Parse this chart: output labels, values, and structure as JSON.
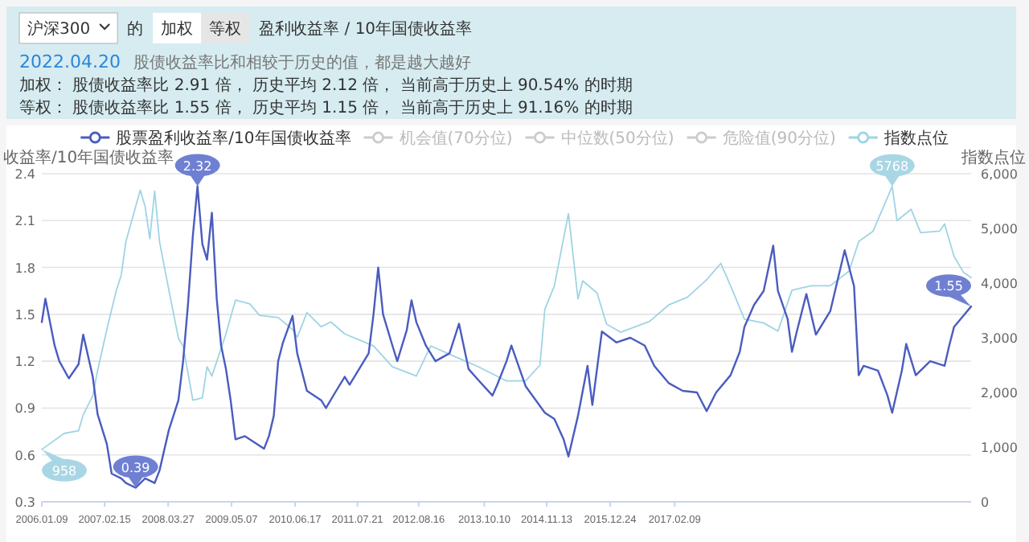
{
  "chart_data": {
    "type": "line",
    "title": "盈利收益率 / 10年国债收益率",
    "subtitle": "2022.04.20",
    "ylabel": "收益率/10年国债收益率",
    "y2label": "指数点位",
    "legend": "top",
    "grid": "y",
    "line_style": "solid",
    "xlim": [
      "2006-01-09",
      "2022-04-20"
    ],
    "xticks": [
      {
        "value": "2006-01-09",
        "label": "2006.01.09"
      },
      {
        "value": "2007-02-15",
        "label": "2007.02.15"
      },
      {
        "value": "2008-03-27",
        "label": "2008.03.27"
      },
      {
        "value": "2009-05-07",
        "label": "2009.05.07"
      },
      {
        "value": "2010-06-17",
        "label": "2010.06.17"
      },
      {
        "value": "2011-07-21",
        "label": "2011.07.21"
      },
      {
        "value": "2012-08-16",
        "label": "2012.08.16"
      },
      {
        "value": "2013-10-10",
        "label": "2013.10.10"
      },
      {
        "value": "2014-11-13",
        "label": "2014.11.13"
      },
      {
        "value": "2015-12-24",
        "label": "2015.12.24"
      },
      {
        "value": "2017-02-09",
        "label": "2017.02.09"
      }
    ],
    "ylim": [
      0.3,
      2.4
    ],
    "yticks": [
      0.3,
      0.6,
      0.9,
      1.2,
      1.5,
      1.8,
      2.1,
      2.4
    ],
    "y2lim": [
      0,
      6000
    ],
    "y2ticks": [
      0,
      {
        "value": 1000,
        "label": "1,000"
      },
      {
        "value": 2000,
        "label": "2,000"
      },
      {
        "value": 3000,
        "label": "3,000"
      },
      {
        "value": 4000,
        "label": "4,000"
      },
      {
        "value": 5000,
        "label": "5,000"
      },
      {
        "value": 6000,
        "label": "6,000"
      }
    ],
    "series": [
      {
        "name": "股票盈利收益率/10年国债收益率",
        "color": "#4a5cbf",
        "x": [
          "2006-01-09",
          "2006-02",
          "2006-04",
          "2006-05",
          "2006-07",
          "2006-09",
          "2006-10",
          "2006-12",
          "2007-01",
          "2007-03",
          "2007-04",
          "2007-06",
          "2007-07",
          "2007-09",
          "2007-11",
          "2008-01",
          "2008-02",
          "2008-04",
          "2008-06",
          "2008-07",
          "2008-08",
          "2008-09",
          "2008-10",
          "2008-11",
          "2008-12",
          "2009-01",
          "2009-02",
          "2009-03",
          "2009-04",
          "2009-05",
          "2009-06",
          "2009-08",
          "2009-10",
          "2009-12",
          "2010-01",
          "2010-02",
          "2010-03",
          "2010-04",
          "2010-06",
          "2010-07",
          "2010-09",
          "2010-12",
          "2011-01",
          "2011-03",
          "2011-05",
          "2011-06",
          "2011-08",
          "2011-10",
          "2011-11",
          "2011-12",
          "2012-01",
          "2012-03",
          "2012-04",
          "2012-06",
          "2012-07",
          "2012-08",
          "2012-10",
          "2012-12",
          "2013-03",
          "2013-05",
          "2013-07",
          "2013-09",
          "2013-12",
          "2014-01",
          "2014-03",
          "2014-04",
          "2014-07",
          "2014-11",
          "2015-01",
          "2015-03",
          "2015-04",
          "2015-06",
          "2015-08",
          "2015-09",
          "2015-11",
          "2016-02",
          "2016-05",
          "2016-08",
          "2016-10",
          "2017-01",
          "2017-04",
          "2017-07",
          "2017-09",
          "2017-11",
          "2018-02",
          "2018-04",
          "2018-05",
          "2018-07",
          "2018-09",
          "2018-11",
          "2018-12",
          "2019-02",
          "2019-03",
          "2019-04",
          "2019-06",
          "2019-08",
          "2019-11",
          "2020-02",
          "2020-04",
          "2020-05",
          "2020-06",
          "2020-09",
          "2020-11",
          "2020-12",
          "2021-02",
          "2021-03",
          "2021-05",
          "2021-08",
          "2021-11",
          "2021-12",
          "2022-01",
          "2022-03",
          "2022-04-20"
        ],
        "values": [
          1.45,
          1.6,
          1.3,
          1.2,
          1.09,
          1.18,
          1.37,
          1.1,
          0.86,
          0.67,
          0.48,
          0.45,
          0.42,
          0.39,
          0.45,
          0.42,
          0.5,
          0.76,
          0.95,
          1.2,
          1.56,
          2.0,
          2.32,
          1.95,
          1.85,
          2.15,
          1.6,
          1.3,
          1.15,
          0.95,
          0.7,
          0.72,
          0.68,
          0.64,
          0.72,
          0.85,
          1.2,
          1.32,
          1.49,
          1.25,
          1.01,
          0.95,
          0.9,
          1.0,
          1.1,
          1.05,
          1.15,
          1.25,
          1.5,
          1.8,
          1.5,
          1.3,
          1.2,
          1.4,
          1.59,
          1.45,
          1.3,
          1.2,
          1.25,
          1.44,
          1.15,
          1.08,
          0.98,
          1.05,
          1.2,
          1.3,
          1.04,
          0.87,
          0.83,
          0.7,
          0.59,
          0.85,
          1.17,
          0.92,
          1.39,
          1.32,
          1.35,
          1.3,
          1.17,
          1.06,
          1.01,
          1.0,
          0.88,
          1.0,
          1.11,
          1.26,
          1.42,
          1.56,
          1.65,
          1.94,
          1.65,
          1.47,
          1.26,
          1.39,
          1.63,
          1.37,
          1.52,
          1.91,
          1.68,
          1.11,
          1.17,
          1.14,
          0.98,
          0.87,
          1.14,
          1.31,
          1.11,
          1.2,
          1.17,
          1.3,
          1.42,
          1.49,
          1.55
        ]
      },
      {
        "name": "指数点位",
        "color": "#9fd4e4",
        "axis": "y2",
        "x": [
          "2006-01-09",
          "2006-06",
          "2006-09",
          "2006-10",
          "2006-12",
          "2007-01",
          "2007-03",
          "2007-05",
          "2007-06",
          "2007-07",
          "2007-10",
          "2007-11",
          "2007-12",
          "2008-01",
          "2008-02",
          "2008-04",
          "2008-06",
          "2008-07",
          "2008-09",
          "2008-11",
          "2008-12",
          "2009-01",
          "2009-04",
          "2009-06",
          "2009-09",
          "2009-11",
          "2010-03",
          "2010-06",
          "2010-07",
          "2010-09",
          "2010-12",
          "2011-02",
          "2011-05",
          "2011-11",
          "2012-03",
          "2012-08",
          "2012-11",
          "2013-04",
          "2013-09",
          "2014-03",
          "2014-07",
          "2014-10",
          "2014-11",
          "2015-01",
          "2015-04",
          "2015-06",
          "2015-07",
          "2015-10",
          "2015-12",
          "2016-03",
          "2016-09",
          "2017-01",
          "2017-05",
          "2017-09",
          "2017-12",
          "2018-02",
          "2018-05",
          "2018-09",
          "2018-12",
          "2019-03",
          "2019-07",
          "2019-11",
          "2020-03",
          "2020-05",
          "2020-08",
          "2020-12",
          "2021-01",
          "2021-04",
          "2021-06",
          "2021-10",
          "2021-11",
          "2022-01",
          "2022-03",
          "2022-04-20"
        ],
        "values": [
          958,
          1250,
          1300,
          1590,
          1940,
          2400,
          3150,
          3870,
          4140,
          4760,
          5700,
          5400,
          4810,
          5680,
          4760,
          3870,
          2990,
          2850,
          1860,
          1900,
          2470,
          2300,
          3070,
          3690,
          3620,
          3410,
          3370,
          3150,
          3010,
          3460,
          3200,
          3290,
          3070,
          2850,
          2470,
          2300,
          2850,
          2660,
          2470,
          2210,
          2210,
          2500,
          3520,
          3950,
          5270,
          3710,
          4040,
          3820,
          3250,
          3100,
          3300,
          3600,
          3740,
          4060,
          4360,
          3950,
          3340,
          3270,
          3120,
          3870,
          3950,
          3950,
          4220,
          4760,
          4950,
          5768,
          5140,
          5350,
          4920,
          4950,
          5080,
          4490,
          4200,
          4100
        ]
      }
    ],
    "annotations": [
      "沪深300",
      "的",
      "加权",
      "等权",
      "股债收益率比和相较于历史的值，都是越大越好",
      "加权： 股债收益率比 2.91 倍， 历史平均 2.12 倍， 当前高于历史上 90.54% 的时期",
      "等权： 股债收益率比 1.55 倍， 历史平均 1.15 倍， 当前高于历史上 91.16% 的时期",
      "机会值(70分位)",
      "中位数(50分位)",
      "危险值(90分位)",
      {
        "text": "2.32",
        "x": "2008-10",
        "y": 2.32
      },
      {
        "text": "0.39",
        "x": "2007-09",
        "y": 0.39
      },
      {
        "text": "1.55",
        "x": "2022-04-20",
        "y": 1.55
      },
      "958",
      "5768"
    ]
  }
}
